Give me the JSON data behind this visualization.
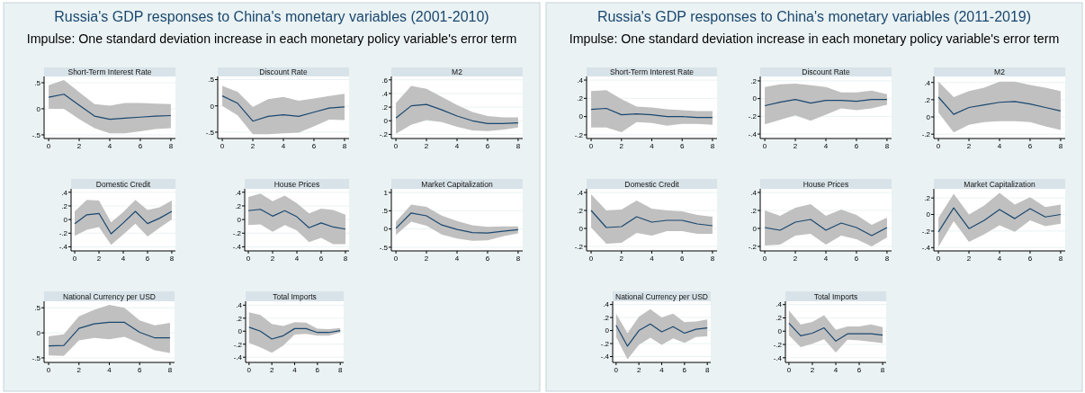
{
  "chart_data": [
    {
      "type": "other",
      "title": "Russia's GDP responses to China's monetary variables (2001-2010)",
      "subtitle": "Impulse: One standard deviation increase in each monetary policy variable's error term"
    },
    {
      "type": "line",
      "title": "Short-Term Interest Rate",
      "x": [
        0,
        1,
        2,
        3,
        4,
        5,
        6,
        7,
        8
      ],
      "xlim": [
        -0.3,
        8.3
      ],
      "xticks": [
        0,
        2,
        4,
        6,
        8
      ],
      "ylim": [
        -0.57,
        0.62
      ],
      "yticks": [
        {
          "value": -0.5,
          "label": "-.5"
        },
        {
          "value": 0,
          "label": "0"
        },
        {
          "value": 0.5,
          "label": ".5"
        }
      ],
      "grid": "y",
      "series": [
        {
          "color": "#1a476f",
          "values": [
            0.22,
            0.28,
            0.07,
            -0.14,
            -0.2,
            -0.18,
            -0.16,
            -0.14,
            -0.13
          ],
          "lower": [
            0,
            0,
            -0.2,
            -0.37,
            -0.47,
            -0.47,
            -0.43,
            -0.39,
            -0.37
          ],
          "upper": [
            0.45,
            0.55,
            0.32,
            0.09,
            0.06,
            0.11,
            0.11,
            0.1,
            0.09
          ]
        }
      ]
    },
    {
      "type": "line",
      "title": "Discount Rate",
      "x": [
        0,
        1,
        2,
        3,
        4,
        5,
        6,
        7,
        8
      ],
      "xlim": [
        -0.3,
        8.3
      ],
      "xticks": [
        0,
        2,
        4,
        6,
        8
      ],
      "ylim": [
        -0.62,
        0.56
      ],
      "yticks": [
        {
          "value": -0.5,
          "label": "-.5"
        },
        {
          "value": 0,
          "label": "0"
        },
        {
          "value": 0.5,
          "label": ".5"
        }
      ],
      "grid": "y",
      "series": [
        {
          "color": "#1a476f",
          "values": [
            0.19,
            0.05,
            -0.29,
            -0.2,
            -0.17,
            -0.2,
            -0.12,
            -0.04,
            -0.02
          ],
          "lower": [
            0,
            -0.18,
            -0.54,
            -0.54,
            -0.52,
            -0.51,
            -0.39,
            -0.26,
            -0.27
          ],
          "upper": [
            0.38,
            0.27,
            -0.02,
            0.13,
            0.17,
            0.1,
            0.14,
            0.19,
            0.23
          ]
        }
      ]
    },
    {
      "type": "line",
      "title": "M2",
      "x": [
        0,
        1,
        2,
        3,
        4,
        5,
        6,
        7,
        8
      ],
      "xlim": [
        -0.3,
        8.3
      ],
      "xticks": [
        0,
        2,
        4,
        6,
        8
      ],
      "ylim": [
        -0.26,
        0.65
      ],
      "yticks": [
        {
          "value": -0.2,
          "label": "-.2"
        },
        {
          "value": 0,
          "label": "0"
        },
        {
          "value": 0.2,
          "label": ".2"
        },
        {
          "value": 0.4,
          "label": ".4"
        },
        {
          "value": 0.6,
          "label": ".6"
        }
      ],
      "grid": "y",
      "series": [
        {
          "color": "#1a476f",
          "values": [
            0.04,
            0.22,
            0.24,
            0.16,
            0.07,
            0,
            -0.04,
            -0.04,
            -0.03
          ],
          "lower": [
            -0.19,
            -0.06,
            0.01,
            -0.02,
            -0.09,
            -0.14,
            -0.15,
            -0.13,
            -0.1
          ],
          "upper": [
            0.26,
            0.51,
            0.47,
            0.35,
            0.23,
            0.13,
            0.07,
            0.05,
            0.05
          ]
        }
      ]
    },
    {
      "type": "line",
      "title": "Domestic Credit",
      "x": [
        0,
        1,
        2,
        3,
        4,
        5,
        6,
        7,
        8
      ],
      "xlim": [
        -0.3,
        8.3
      ],
      "xticks": [
        0,
        2,
        4,
        6,
        8
      ],
      "ylim": [
        -0.46,
        0.45
      ],
      "yticks": [
        {
          "value": -0.4,
          "label": "-.4"
        },
        {
          "value": -0.2,
          "label": "-.2"
        },
        {
          "value": 0,
          "label": "0"
        },
        {
          "value": 0.2,
          "label": ".2"
        },
        {
          "value": 0.4,
          "label": ".4"
        }
      ],
      "grid": "y",
      "series": [
        {
          "color": "#1a476f",
          "values": [
            -0.06,
            0.07,
            0.09,
            -0.21,
            -0.05,
            0.12,
            -0.06,
            0.02,
            0.12
          ],
          "lower": [
            -0.24,
            -0.15,
            -0.11,
            -0.37,
            -0.22,
            -0.06,
            -0.25,
            -0.12,
            0
          ],
          "upper": [
            0.12,
            0.29,
            0.28,
            -0.04,
            0.11,
            0.29,
            0.14,
            0.18,
            0.28
          ]
        }
      ]
    },
    {
      "type": "line",
      "title": "House Prices",
      "x": [
        0,
        1,
        2,
        3,
        4,
        5,
        6,
        7,
        8
      ],
      "xlim": [
        -0.3,
        8.3
      ],
      "xticks": [
        0,
        2,
        4,
        6,
        8
      ],
      "ylim": [
        -0.46,
        0.45
      ],
      "yticks": [
        {
          "value": -0.4,
          "label": "-.4"
        },
        {
          "value": -0.2,
          "label": "-.2"
        },
        {
          "value": 0,
          "label": "0"
        },
        {
          "value": 0.2,
          "label": ".2"
        },
        {
          "value": 0.4,
          "label": ".4"
        }
      ],
      "grid": "y",
      "series": [
        {
          "color": "#1a476f",
          "values": [
            0.13,
            0.15,
            0.05,
            0.13,
            0.04,
            -0.12,
            -0.05,
            -0.11,
            -0.14
          ],
          "lower": [
            -0.08,
            -0.07,
            -0.18,
            -0.08,
            -0.16,
            -0.33,
            -0.27,
            -0.36,
            -0.36
          ],
          "upper": [
            0.33,
            0.38,
            0.27,
            0.35,
            0.24,
            0.09,
            0.16,
            0.14,
            0.07
          ]
        }
      ]
    },
    {
      "type": "line",
      "title": "Market Capitalization",
      "x": [
        0,
        1,
        2,
        3,
        4,
        5,
        6,
        7,
        8
      ],
      "xlim": [
        -0.3,
        8.3
      ],
      "xticks": [
        0,
        2,
        4,
        6,
        8
      ],
      "ylim": [
        -0.6,
        1.1
      ],
      "yticks": [
        {
          "value": -0.5,
          "label": "-.5"
        },
        {
          "value": 0,
          "label": "0"
        },
        {
          "value": 0.5,
          "label": ".5"
        },
        {
          "value": 1,
          "label": "1"
        }
      ],
      "grid": "y",
      "series": [
        {
          "color": "#1a476f",
          "values": [
            0.02,
            0.44,
            0.36,
            0.11,
            -0.01,
            -0.1,
            -0.11,
            -0.06,
            -0.02
          ],
          "lower": [
            -0.16,
            0.2,
            0.09,
            -0.15,
            -0.26,
            -0.32,
            -0.31,
            -0.2,
            -0.12
          ],
          "upper": [
            0.2,
            0.67,
            0.61,
            0.37,
            0.22,
            0.1,
            0.06,
            0.07,
            0.07
          ]
        }
      ]
    },
    {
      "type": "line",
      "title": "National Currency per USD",
      "x": [
        0,
        1,
        2,
        3,
        4,
        5,
        6,
        7,
        8
      ],
      "xlim": [
        -0.3,
        8.3
      ],
      "xticks": [
        0,
        2,
        4,
        6,
        8
      ],
      "ylim": [
        -0.59,
        0.63
      ],
      "yticks": [
        {
          "value": -0.5,
          "label": "-.5"
        },
        {
          "value": 0,
          "label": "0"
        },
        {
          "value": 0.5,
          "label": ".5"
        }
      ],
      "grid": "y",
      "series": [
        {
          "color": "#1a476f",
          "values": [
            -0.26,
            -0.25,
            0.09,
            0.18,
            0.21,
            0.21,
            0.01,
            -0.1,
            -0.1
          ],
          "lower": [
            -0.45,
            -0.46,
            -0.15,
            -0.1,
            -0.13,
            -0.08,
            -0.21,
            -0.35,
            -0.4
          ],
          "upper": [
            -0.07,
            -0.03,
            0.33,
            0.46,
            0.56,
            0.5,
            0.25,
            0.15,
            0.2
          ]
        }
      ]
    },
    {
      "type": "line",
      "title": "Total Imports",
      "x": [
        0,
        1,
        2,
        3,
        4,
        5,
        6,
        7,
        8
      ],
      "xlim": [
        -0.3,
        8.3
      ],
      "xticks": [
        0,
        2,
        4,
        6,
        8
      ],
      "ylim": [
        -0.48,
        0.46
      ],
      "yticks": [
        {
          "value": -0.4,
          "label": "-.4"
        },
        {
          "value": -0.2,
          "label": "-.2"
        },
        {
          "value": 0,
          "label": "0"
        },
        {
          "value": 0.2,
          "label": ".2"
        },
        {
          "value": 0.4,
          "label": ".4"
        }
      ],
      "grid": "y",
      "series": [
        {
          "color": "#1a476f",
          "values": [
            0.06,
            0,
            -0.12,
            -0.07,
            0.04,
            0.04,
            -0.02,
            -0.02,
            0.01
          ],
          "lower": [
            -0.18,
            -0.25,
            -0.33,
            -0.22,
            -0.05,
            -0.04,
            -0.07,
            -0.07,
            -0.02
          ],
          "upper": [
            0.29,
            0.25,
            0.11,
            0.08,
            0.14,
            0.13,
            0.04,
            0.03,
            0.05
          ]
        }
      ]
    },
    {
      "type": "other",
      "title": "Russia's GDP responses to China's monetary variables (2011-2019)",
      "subtitle": "Impulse: One standard deviation increase in each monetary policy variable's error term"
    },
    {
      "type": "line",
      "title": "Short-Term Interest Rate",
      "x": [
        0,
        1,
        2,
        3,
        4,
        5,
        6,
        7,
        8
      ],
      "xlim": [
        -0.3,
        8.3
      ],
      "xticks": [
        0,
        2,
        4,
        6,
        8
      ],
      "ylim": [
        -0.24,
        0.44
      ],
      "yticks": [
        {
          "value": -0.2,
          "label": "-.2"
        },
        {
          "value": 0,
          "label": "0"
        },
        {
          "value": 0.2,
          "label": ".2"
        },
        {
          "value": 0.4,
          "label": ".4"
        }
      ],
      "grid": "y",
      "series": [
        {
          "color": "#1a476f",
          "values": [
            0.08,
            0.09,
            0.02,
            0.03,
            0.02,
            0,
            0,
            -0.01,
            -0.01
          ],
          "lower": [
            -0.12,
            -0.12,
            -0.17,
            -0.06,
            -0.07,
            -0.1,
            -0.08,
            -0.08,
            -0.09
          ],
          "upper": [
            0.28,
            0.29,
            0.19,
            0.11,
            0.1,
            0.08,
            0.07,
            0.06,
            0.06
          ]
        }
      ]
    },
    {
      "type": "line",
      "title": "Discount Rate",
      "x": [
        0,
        1,
        2,
        3,
        4,
        5,
        6,
        7,
        8
      ],
      "xlim": [
        -0.3,
        8.3
      ],
      "xticks": [
        0,
        2,
        4,
        6,
        8
      ],
      "ylim": [
        -0.45,
        0.25
      ],
      "yticks": [
        {
          "value": -0.4,
          "label": "-.4"
        },
        {
          "value": -0.2,
          "label": "-.2"
        },
        {
          "value": 0,
          "label": "0"
        },
        {
          "value": 0.2,
          "label": ".2"
        }
      ],
      "grid": "y",
      "series": [
        {
          "color": "#1a476f",
          "values": [
            -0.08,
            -0.04,
            -0.01,
            -0.05,
            -0.02,
            -0.02,
            -0.03,
            -0.01,
            -0.01
          ],
          "lower": [
            -0.29,
            -0.24,
            -0.19,
            -0.25,
            -0.18,
            -0.11,
            -0.13,
            -0.11,
            -0.07
          ],
          "upper": [
            0.13,
            0.16,
            0.17,
            0.15,
            0.13,
            0.07,
            0.07,
            0.09,
            0.05
          ]
        }
      ]
    },
    {
      "type": "line",
      "title": "M2",
      "x": [
        0,
        1,
        2,
        3,
        4,
        5,
        6,
        7,
        8
      ],
      "xlim": [
        -0.3,
        8.3
      ],
      "xticks": [
        0,
        2,
        4,
        6,
        8
      ],
      "ylim": [
        -0.25,
        0.47
      ],
      "yticks": [
        {
          "value": -0.2,
          "label": "-.2"
        },
        {
          "value": 0,
          "label": "0"
        },
        {
          "value": 0.2,
          "label": ".2"
        },
        {
          "value": 0.4,
          "label": ".4"
        }
      ],
      "grid": "y",
      "series": [
        {
          "color": "#1a476f",
          "values": [
            0.23,
            0.03,
            0.11,
            0.14,
            0.17,
            0.18,
            0.15,
            0.11,
            0.07
          ],
          "lower": [
            0.05,
            -0.18,
            -0.09,
            -0.06,
            -0.05,
            -0.05,
            -0.06,
            -0.11,
            -0.15
          ],
          "upper": [
            0.41,
            0.23,
            0.3,
            0.34,
            0.41,
            0.41,
            0.37,
            0.34,
            0.3
          ]
        }
      ]
    },
    {
      "type": "line",
      "title": "Domestic Credit",
      "x": [
        0,
        1,
        2,
        3,
        4,
        5,
        6,
        7,
        8
      ],
      "xlim": [
        -0.3,
        8.3
      ],
      "xticks": [
        0,
        2,
        4,
        6,
        8
      ],
      "ylim": [
        -0.25,
        0.44
      ],
      "yticks": [
        {
          "value": -0.2,
          "label": "-.2"
        },
        {
          "value": 0,
          "label": "0"
        },
        {
          "value": 0.2,
          "label": ".2"
        },
        {
          "value": 0.4,
          "label": ".4"
        }
      ],
      "grid": "y",
      "series": [
        {
          "color": "#1a476f",
          "values": [
            0.2,
            0.01,
            0.02,
            0.13,
            0.07,
            0.09,
            0.09,
            0.05,
            0.03
          ],
          "lower": [
            0.01,
            -0.17,
            -0.16,
            -0.05,
            -0.08,
            -0.03,
            -0.03,
            -0.06,
            -0.06
          ],
          "upper": [
            0.38,
            0.2,
            0.21,
            0.31,
            0.22,
            0.2,
            0.19,
            0.15,
            0.13
          ]
        }
      ]
    },
    {
      "type": "line",
      "title": "House Prices",
      "x": [
        0,
        1,
        2,
        3,
        4,
        5,
        6,
        7,
        8
      ],
      "xlim": [
        -0.3,
        8.3
      ],
      "xticks": [
        0,
        2,
        4,
        6,
        8
      ],
      "ylim": [
        -0.25,
        0.44
      ],
      "yticks": [
        {
          "value": -0.2,
          "label": "-.2"
        },
        {
          "value": 0,
          "label": "0"
        },
        {
          "value": 0.2,
          "label": ".2"
        },
        {
          "value": 0.4,
          "label": ".4"
        }
      ],
      "grid": "y",
      "series": [
        {
          "color": "#1a476f",
          "values": [
            0.01,
            -0.02,
            0.07,
            0.1,
            -0.02,
            0.06,
            0.01,
            -0.08,
            0.01
          ],
          "lower": [
            -0.19,
            -0.18,
            -0.08,
            -0.06,
            -0.18,
            -0.08,
            -0.12,
            -0.2,
            -0.1
          ],
          "upper": [
            0.2,
            0.14,
            0.23,
            0.27,
            0.14,
            0.21,
            0.15,
            0.04,
            0.12
          ]
        }
      ]
    },
    {
      "type": "line",
      "title": "Market Capitalization",
      "x": [
        0,
        1,
        2,
        3,
        4,
        5,
        6,
        7,
        8
      ],
      "xlim": [
        -0.3,
        8.3
      ],
      "xticks": [
        0,
        2,
        4,
        6,
        8
      ],
      "ylim": [
        -0.44,
        0.31
      ],
      "yticks": [
        {
          "value": -0.4,
          "label": "-.4"
        },
        {
          "value": -0.2,
          "label": "-.2"
        },
        {
          "value": 0,
          "label": "0"
        },
        {
          "value": 0.2,
          "label": ".2"
        }
      ],
      "grid": "y",
      "series": [
        {
          "color": "#1a476f",
          "values": [
            -0.21,
            0.08,
            -0.17,
            -0.07,
            0.06,
            -0.05,
            0.07,
            -0.03,
            0
          ],
          "lower": [
            -0.39,
            -0.08,
            -0.33,
            -0.24,
            -0.13,
            -0.21,
            -0.07,
            -0.14,
            -0.11
          ],
          "upper": [
            -0.04,
            0.25,
            0,
            0.11,
            0.26,
            0.12,
            0.21,
            0.09,
            0.12
          ]
        }
      ]
    },
    {
      "type": "line",
      "title": "National Currency per USD",
      "x": [
        0,
        1,
        2,
        3,
        4,
        5,
        6,
        7,
        8
      ],
      "xlim": [
        -0.3,
        8.3
      ],
      "xticks": [
        0,
        2,
        4,
        6,
        8
      ],
      "ylim": [
        -0.49,
        0.45
      ],
      "yticks": [
        {
          "value": -0.4,
          "label": "-.4"
        },
        {
          "value": -0.2,
          "label": "-.2"
        },
        {
          "value": 0,
          "label": "0"
        },
        {
          "value": 0.2,
          "label": ".2"
        },
        {
          "value": 0.4,
          "label": ".4"
        }
      ],
      "grid": "y",
      "series": [
        {
          "color": "#1a476f",
          "values": [
            0.08,
            -0.24,
            0,
            0.1,
            -0.02,
            0.06,
            -0.04,
            0.02,
            0.04
          ],
          "lower": [
            -0.1,
            -0.44,
            -0.22,
            -0.11,
            -0.22,
            -0.12,
            -0.19,
            -0.1,
            -0.09
          ],
          "upper": [
            0.26,
            -0.04,
            0.21,
            0.33,
            0.2,
            0.26,
            0.13,
            0.14,
            0.17
          ]
        }
      ]
    },
    {
      "type": "line",
      "title": "Total Imports",
      "x": [
        0,
        1,
        2,
        3,
        4,
        5,
        6,
        7,
        8
      ],
      "xlim": [
        -0.3,
        8.3
      ],
      "xticks": [
        0,
        2,
        4,
        6,
        8
      ],
      "ylim": [
        -0.47,
        0.45
      ],
      "yticks": [
        {
          "value": -0.4,
          "label": "-.4"
        },
        {
          "value": -0.2,
          "label": "-.2"
        },
        {
          "value": 0,
          "label": "0"
        },
        {
          "value": 0.2,
          "label": ".2"
        },
        {
          "value": 0.4,
          "label": ".4"
        }
      ],
      "grid": "y",
      "series": [
        {
          "color": "#1a476f",
          "values": [
            0.12,
            -0.07,
            -0.03,
            0.05,
            -0.15,
            -0.04,
            -0.04,
            -0.04,
            -0.06
          ],
          "lower": [
            -0.06,
            -0.24,
            -0.19,
            -0.12,
            -0.32,
            -0.13,
            -0.14,
            -0.16,
            -0.18
          ],
          "upper": [
            0.31,
            0.1,
            0.14,
            0.24,
            0.02,
            0.07,
            0.07,
            0.1,
            0.06
          ]
        }
      ]
    }
  ]
}
